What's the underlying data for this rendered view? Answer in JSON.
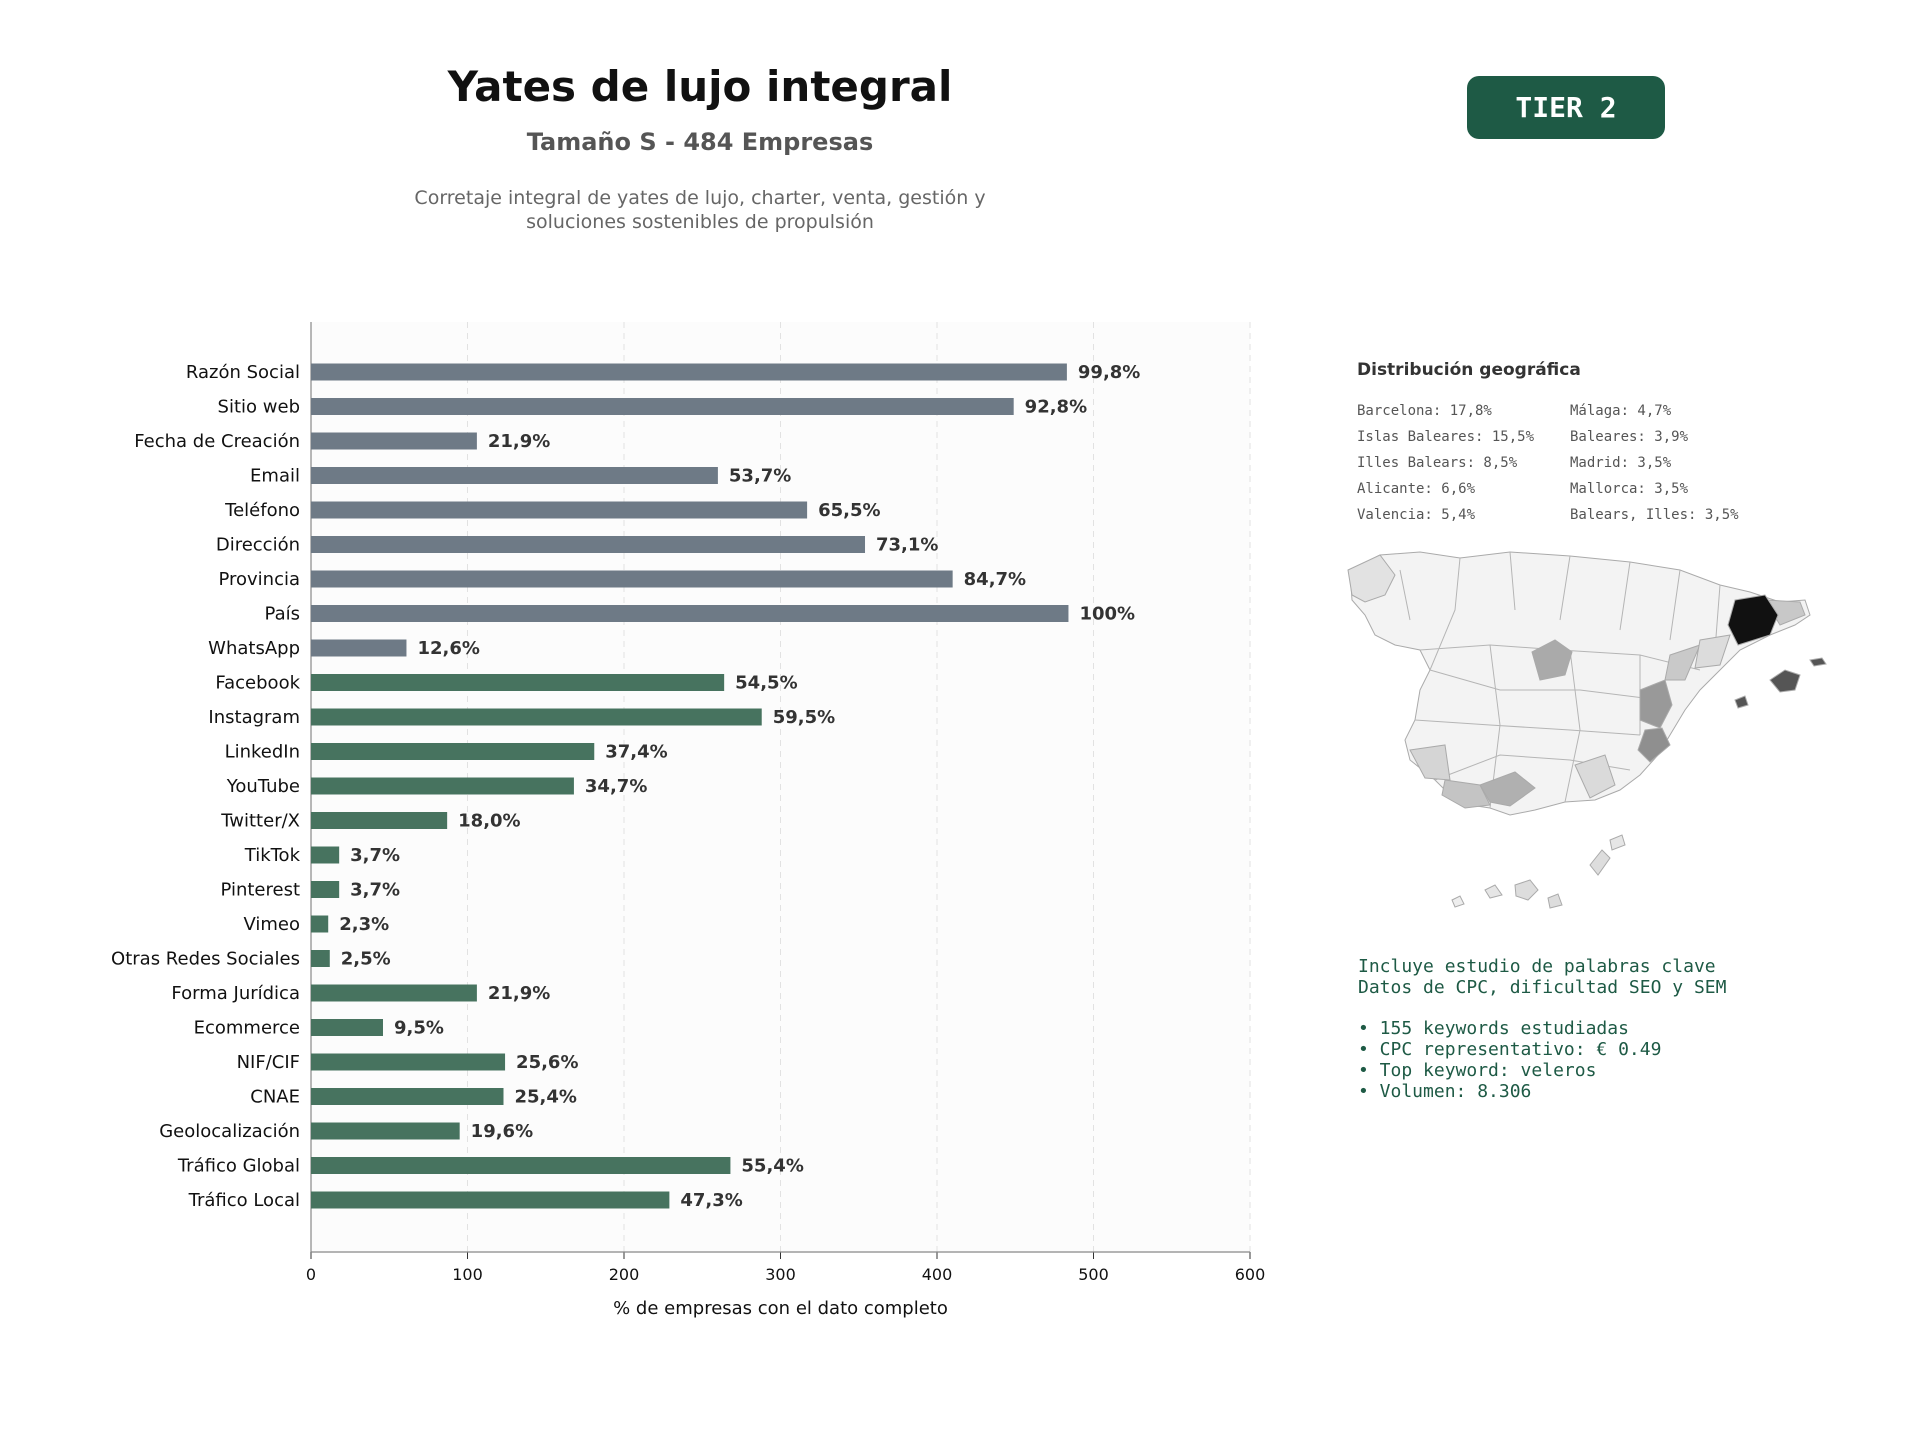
{
  "header": {
    "title": "Yates de lujo integral",
    "subtitle": "Tamaño S - 484 Empresas",
    "description_line1": "Corretaje integral de yates de lujo, charter, venta, gestión y",
    "description_line2": "soluciones sostenibles de propulsión"
  },
  "badge": {
    "label": "TIER 2",
    "color": "#1e5a45"
  },
  "chart_data": {
    "type": "bar",
    "orientation": "horizontal",
    "xlabel": "% de empresas con el dato completo",
    "xlim": [
      0,
      600
    ],
    "xticks": [
      "0",
      "100",
      "200",
      "300",
      "400",
      "500",
      "600"
    ],
    "grid": "vertical dashed",
    "categories": [
      "Razón Social",
      "Sitio web",
      "Fecha de Creación",
      "Email",
      "Teléfono",
      "Dirección",
      "Provincia",
      "País",
      "WhatsApp",
      "Facebook",
      "Instagram",
      "LinkedIn",
      "YouTube",
      "Twitter/X",
      "TikTok",
      "Pinterest",
      "Vimeo",
      "Otras Redes Sociales",
      "Forma Jurídica",
      "Ecommerce",
      "NIF/CIF",
      "CNAE",
      "Geolocalización",
      "Tráfico Global",
      "Tráfico Local"
    ],
    "values": [
      483,
      449,
      106,
      260,
      317,
      354,
      410,
      484,
      61,
      264,
      288,
      181,
      168,
      87,
      18,
      18,
      11,
      12,
      106,
      46,
      124,
      123,
      95,
      268,
      229
    ],
    "labels": [
      "99,8%",
      "92,8%",
      "21,9%",
      "53,7%",
      "65,5%",
      "73,1%",
      "84,7%",
      "100%",
      "12,6%",
      "54,5%",
      "59,5%",
      "37,4%",
      "34,7%",
      "18,0%",
      "3,7%",
      "3,7%",
      "2,3%",
      "2,5%",
      "21,9%",
      "9,5%",
      "25,6%",
      "25,4%",
      "19,6%",
      "55,4%",
      "47,3%"
    ],
    "groups": [
      "base",
      "base",
      "base",
      "base",
      "base",
      "base",
      "base",
      "base",
      "base",
      "extra",
      "extra",
      "extra",
      "extra",
      "extra",
      "extra",
      "extra",
      "extra",
      "extra",
      "extra",
      "extra",
      "extra",
      "extra",
      "extra",
      "extra",
      "extra"
    ],
    "colors": {
      "base": "#6e7a86",
      "extra": "#47735f"
    }
  },
  "geo": {
    "title": "Distribución geográfica",
    "items": [
      "Barcelona: 17,8%",
      "Islas Baleares: 15,5%",
      "Illes Balears: 8,5%",
      "Alicante: 6,6%",
      "Valencia: 5,4%",
      "Málaga: 4,7%",
      "Baleares: 3,9%",
      "Madrid: 3,5%",
      "Mallorca: 3,5%",
      "Balears, Illes: 3,5%"
    ]
  },
  "seo": {
    "line1": "Incluye estudio de palabras clave",
    "line2": "Datos de CPC, dificultad SEO y SEM",
    "bullets": [
      "• 155 keywords estudiadas",
      "• CPC representativo: € 0.49",
      "• Top keyword: veleros",
      "• Volumen: 8.306"
    ]
  }
}
